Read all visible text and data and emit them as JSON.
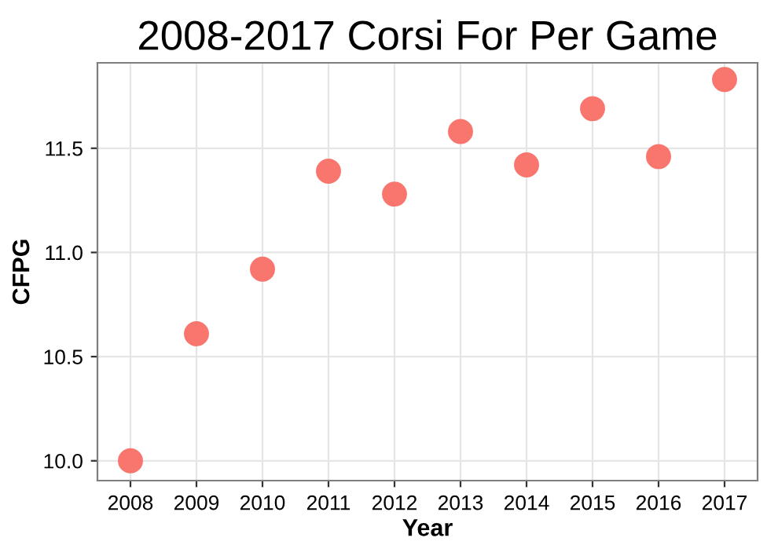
{
  "chart_data": {
    "type": "scatter",
    "title": "2008-2017 Corsi For Per Game",
    "xlabel": "Year",
    "ylabel": "CFPG",
    "categories": [
      "2008",
      "2009",
      "2010",
      "2011",
      "2012",
      "2013",
      "2014",
      "2015",
      "2016",
      "2017"
    ],
    "series": [
      {
        "color": "#f8766d",
        "values": [
          10.0,
          10.61,
          10.92,
          11.39,
          11.28,
          11.58,
          11.42,
          11.69,
          11.46,
          11.83
        ]
      }
    ],
    "ylim": [
      9.905,
      11.91
    ],
    "yticks": [
      {
        "value": 10.0,
        "label": "10.0"
      },
      {
        "value": 10.5,
        "label": "10.5"
      },
      {
        "value": 11.0,
        "label": "11.0"
      },
      {
        "value": 11.5,
        "label": "11.5"
      }
    ],
    "grid": true,
    "marker": "circle"
  }
}
